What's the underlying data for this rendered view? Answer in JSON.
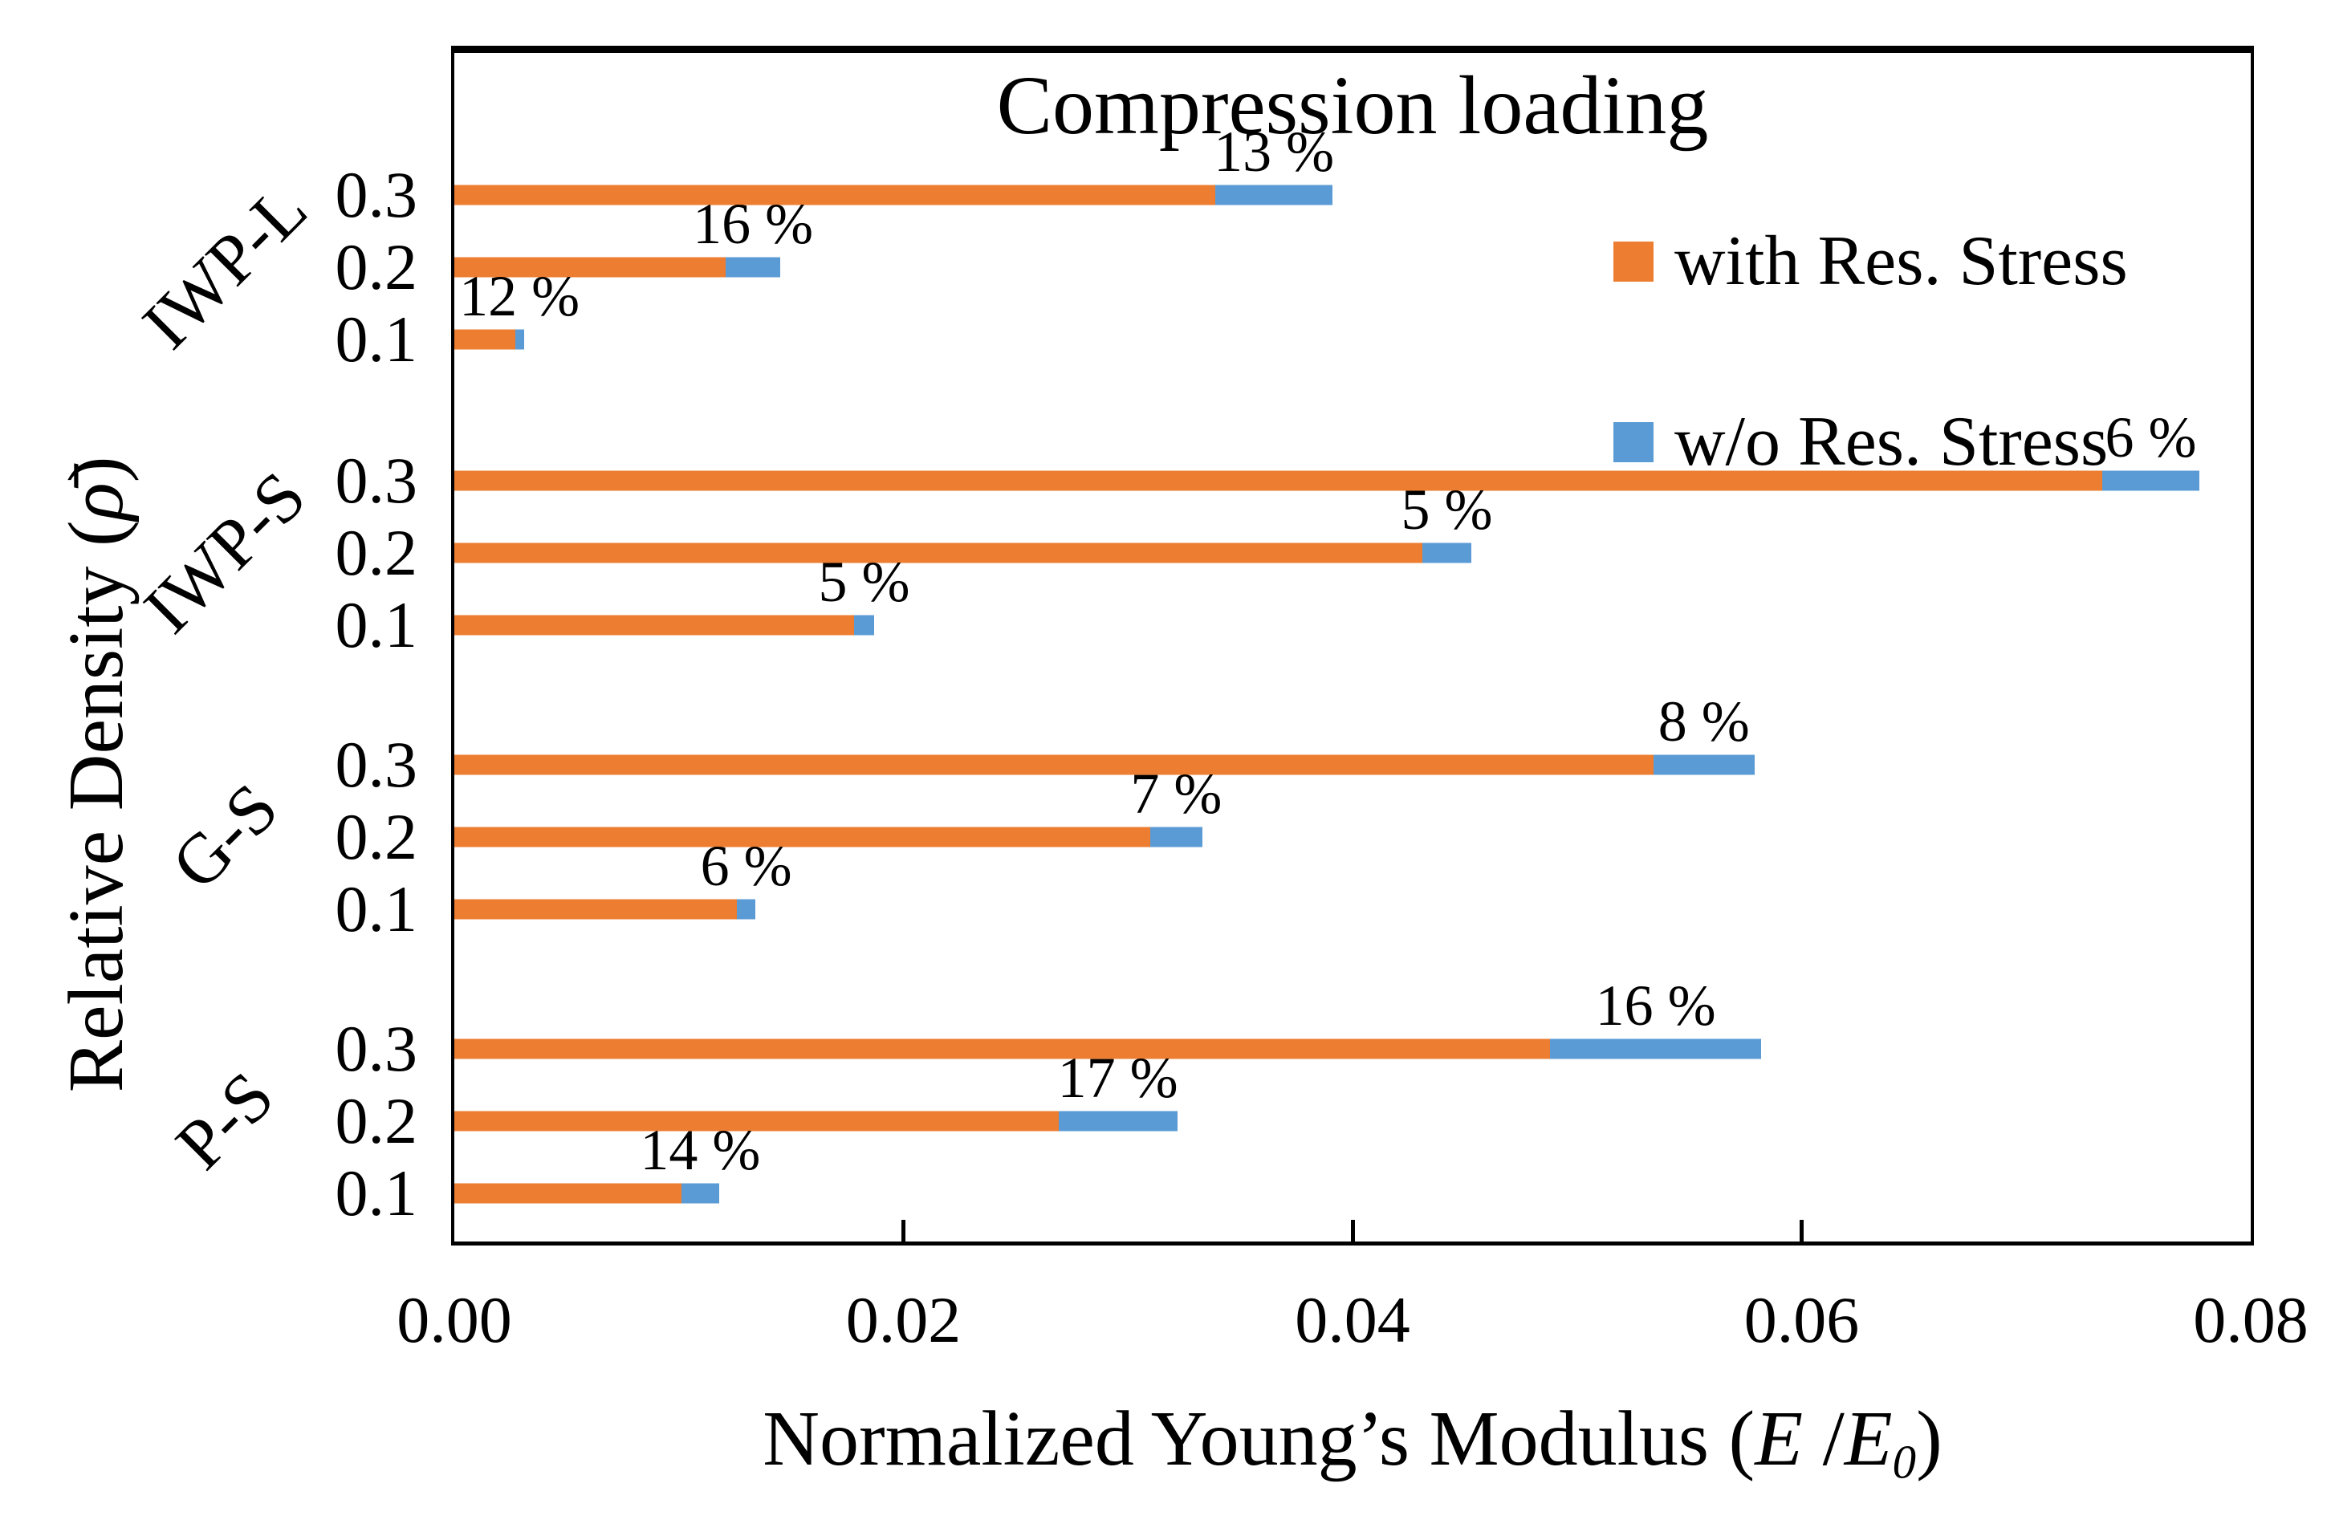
{
  "chart_data": {
    "type": "bar",
    "orientation": "horizontal",
    "title": "Compression loading",
    "xlabel_plain": "Normalized Young’s Modulus (E /E0)",
    "ylabel_plain": "Relative Density (ρ̄)",
    "xlabel_parts": {
      "prefix": "Normalized Young’s Modulus (",
      "E1": "E",
      "slash": " /",
      "E2": "E",
      "sub": "0",
      "suffix": ")"
    },
    "ylabel_parts": {
      "prefix": "Relative Density (",
      "rho": "ρ̄",
      "suffix": ")"
    },
    "xlim": [
      0,
      0.08
    ],
    "x_ticks": [
      {
        "value": 0.0,
        "label": "0.00"
      },
      {
        "value": 0.02,
        "label": "0.02"
      },
      {
        "value": 0.04,
        "label": "0.04"
      },
      {
        "value": 0.06,
        "label": "0.06"
      },
      {
        "value": 0.08,
        "label": "0.08"
      }
    ],
    "grid": false,
    "legend_position": "inside-upper-right",
    "legend": [
      {
        "label": "with Res. Stress",
        "color": "#ED7D31"
      },
      {
        "label": "w/o Res. Stress",
        "color": "#5B9BD5"
      }
    ],
    "groups": [
      {
        "name": "IWP-L",
        "bars": [
          {
            "density": "0.3",
            "with_res_stress": 0.0339,
            "wo_res_stress": 0.0391,
            "reduction_label": "13 %"
          },
          {
            "density": "0.2",
            "with_res_stress": 0.0121,
            "wo_res_stress": 0.0145,
            "reduction_label": "16 %"
          },
          {
            "density": "0.1",
            "with_res_stress": 0.0027,
            "wo_res_stress": 0.0031,
            "reduction_label": "12 %"
          }
        ]
      },
      {
        "name": "IWP-S",
        "bars": [
          {
            "density": "0.3",
            "with_res_stress": 0.0734,
            "wo_res_stress": 0.0777,
            "reduction_label": "6 %"
          },
          {
            "density": "0.2",
            "with_res_stress": 0.0431,
            "wo_res_stress": 0.0453,
            "reduction_label": "5 %"
          },
          {
            "density": "0.1",
            "with_res_stress": 0.0178,
            "wo_res_stress": 0.0187,
            "reduction_label": "5 %"
          }
        ]
      },
      {
        "name": "G-S",
        "bars": [
          {
            "density": "0.3",
            "with_res_stress": 0.0534,
            "wo_res_stress": 0.0579,
            "reduction_label": "8 %"
          },
          {
            "density": "0.2",
            "with_res_stress": 0.031,
            "wo_res_stress": 0.0333,
            "reduction_label": "7 %"
          },
          {
            "density": "0.1",
            "with_res_stress": 0.0126,
            "wo_res_stress": 0.0134,
            "reduction_label": "6 %"
          }
        ]
      },
      {
        "name": "P-S",
        "bars": [
          {
            "density": "0.3",
            "with_res_stress": 0.0488,
            "wo_res_stress": 0.0582,
            "reduction_label": "16 %"
          },
          {
            "density": "0.2",
            "with_res_stress": 0.0269,
            "wo_res_stress": 0.0322,
            "reduction_label": "17 %"
          },
          {
            "density": "0.1",
            "with_res_stress": 0.0101,
            "wo_res_stress": 0.0118,
            "reduction_label": "14 %"
          }
        ]
      }
    ]
  }
}
